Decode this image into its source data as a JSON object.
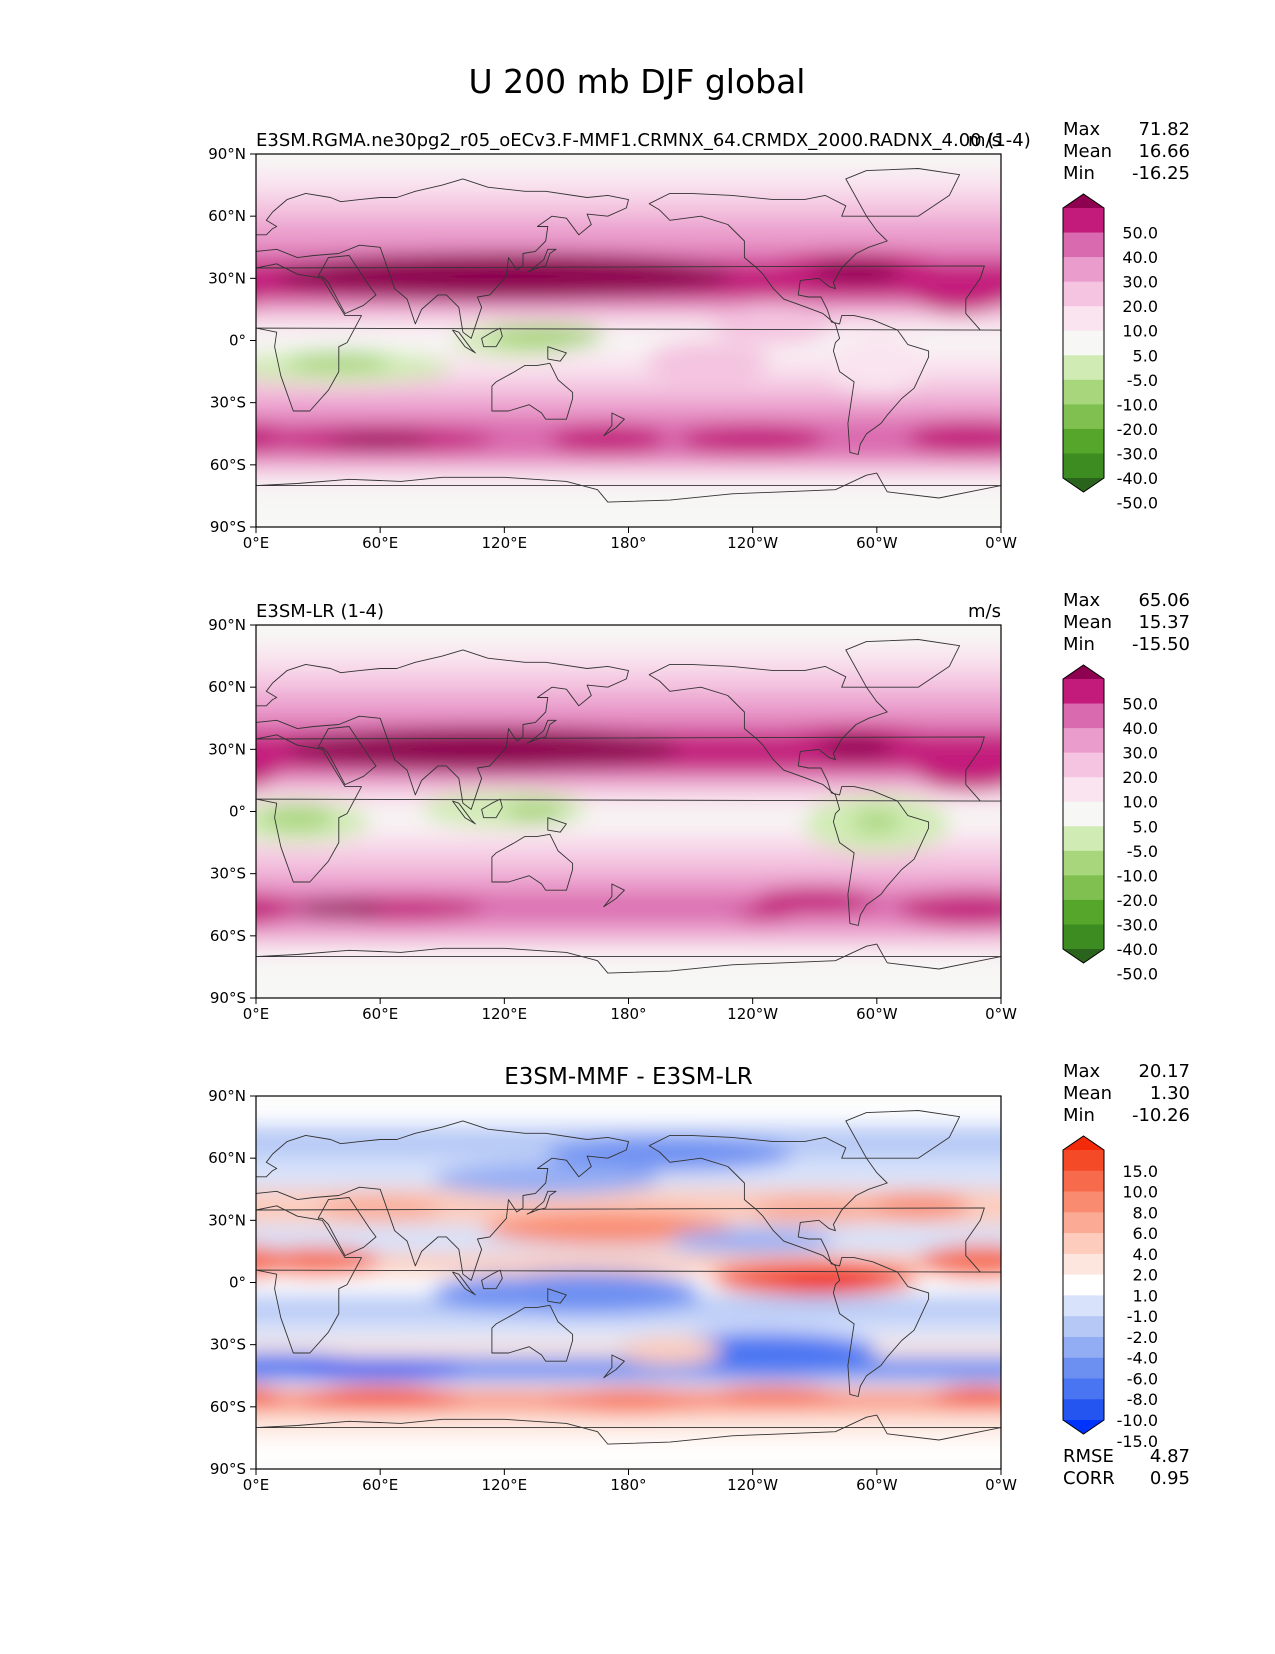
{
  "figure": {
    "title": "U 200 mb DJF global"
  },
  "colors": {
    "land_bg": "#f7f7f5",
    "coast": "#333333",
    "piyg_scale": [
      "#2a641c",
      "#3c8c22",
      "#56a62c",
      "#80c050",
      "#a8d67c",
      "#d0ecb4",
      "#f7f7f5",
      "#f9e4ef",
      "#f4c4e0",
      "#ea9ccc",
      "#da6aaf",
      "#c31b7c",
      "#8d0150"
    ],
    "bwr_scale": [
      "#0033ff",
      "#2555f0",
      "#4a75f2",
      "#6c8ff2",
      "#93adf4",
      "#b6c9f6",
      "#d8e2fa",
      "#ffffff",
      "#fde6dd",
      "#fdccbc",
      "#fbab95",
      "#f98b70",
      "#f76a4b",
      "#f44a28",
      "#f22a0a"
    ]
  },
  "stats_labels": {
    "max": "Max",
    "mean": "Mean",
    "min": "Min",
    "rmse": "RMSE",
    "corr": "CORR"
  },
  "chart_data": [
    {
      "type": "filled-contour-map",
      "name": "test",
      "title_left": "E3SM.RGMA.ne30pg2_r05_oECv3.F-MMF1.CRMNX_64.CRMDX_2000.RADNX_4.00 (1-4)",
      "title_right": "m/s",
      "title_center": "",
      "xticks": [
        "0°E",
        "60°E",
        "120°E",
        "180°",
        "120°W",
        "60°W",
        "0°W"
      ],
      "yticks": [
        "90°N",
        "60°N",
        "30°N",
        "0°",
        "30°S",
        "60°S",
        "90°S"
      ],
      "lon_range": [
        0,
        360
      ],
      "lat_range": [
        -90,
        90
      ],
      "stats": {
        "max": "71.82",
        "mean": "16.66",
        "min": "-16.25"
      },
      "colorbar_levels": [
        "-50.0",
        "-40.0",
        "-30.0",
        "-20.0",
        "-10.0",
        "-5.0",
        "5.0",
        "10.0",
        "20.0",
        "30.0",
        "40.0",
        "50.0"
      ],
      "colorbar_labels_shown": [
        "50.0",
        "40.0",
        "30.0",
        "20.0",
        "10.0",
        "5.0",
        "-5.0",
        "-10.0",
        "-20.0",
        "-30.0",
        "-40.0",
        "-50.0"
      ],
      "colormap": "piyg"
    },
    {
      "type": "filled-contour-map",
      "name": "reference",
      "title_left": "E3SM-LR (1-4)",
      "title_right": "m/s",
      "title_center": "",
      "xticks": [
        "0°E",
        "60°E",
        "120°E",
        "180°",
        "120°W",
        "60°W",
        "0°W"
      ],
      "yticks": [
        "90°N",
        "60°N",
        "30°N",
        "0°",
        "30°S",
        "60°S",
        "90°S"
      ],
      "lon_range": [
        0,
        360
      ],
      "lat_range": [
        -90,
        90
      ],
      "stats": {
        "max": "65.06",
        "mean": "15.37",
        "min": "-15.50"
      },
      "colorbar_levels": [
        "-50.0",
        "-40.0",
        "-30.0",
        "-20.0",
        "-10.0",
        "-5.0",
        "5.0",
        "10.0",
        "20.0",
        "30.0",
        "40.0",
        "50.0"
      ],
      "colorbar_labels_shown": [
        "50.0",
        "40.0",
        "30.0",
        "20.0",
        "10.0",
        "5.0",
        "-5.0",
        "-10.0",
        "-20.0",
        "-30.0",
        "-40.0",
        "-50.0"
      ],
      "colormap": "piyg"
    },
    {
      "type": "filled-contour-map",
      "name": "difference",
      "title_left": "",
      "title_right": "",
      "title_center": "E3SM-MMF - E3SM-LR",
      "xticks": [
        "0°E",
        "60°E",
        "120°E",
        "180°",
        "120°W",
        "60°W",
        "0°W"
      ],
      "yticks": [
        "90°N",
        "60°N",
        "30°N",
        "0°",
        "30°S",
        "60°S",
        "90°S"
      ],
      "lon_range": [
        0,
        360
      ],
      "lat_range": [
        -90,
        90
      ],
      "stats": {
        "max": "20.17",
        "mean": "1.30",
        "min": "-10.26",
        "rmse": "4.87",
        "corr": "0.95"
      },
      "colorbar_levels": [
        "-15.0",
        "-10.0",
        "-8.0",
        "-6.0",
        "-4.0",
        "-2.0",
        "-1.0",
        "1.0",
        "2.0",
        "4.0",
        "6.0",
        "8.0",
        "10.0",
        "15.0"
      ],
      "colorbar_labels_shown": [
        "15.0",
        "10.0",
        "8.0",
        "6.0",
        "4.0",
        "2.0",
        "1.0",
        "-1.0",
        "-2.0",
        "-4.0",
        "-6.0",
        "-8.0",
        "-10.0",
        "-15.0"
      ],
      "colormap": "bwr"
    }
  ]
}
